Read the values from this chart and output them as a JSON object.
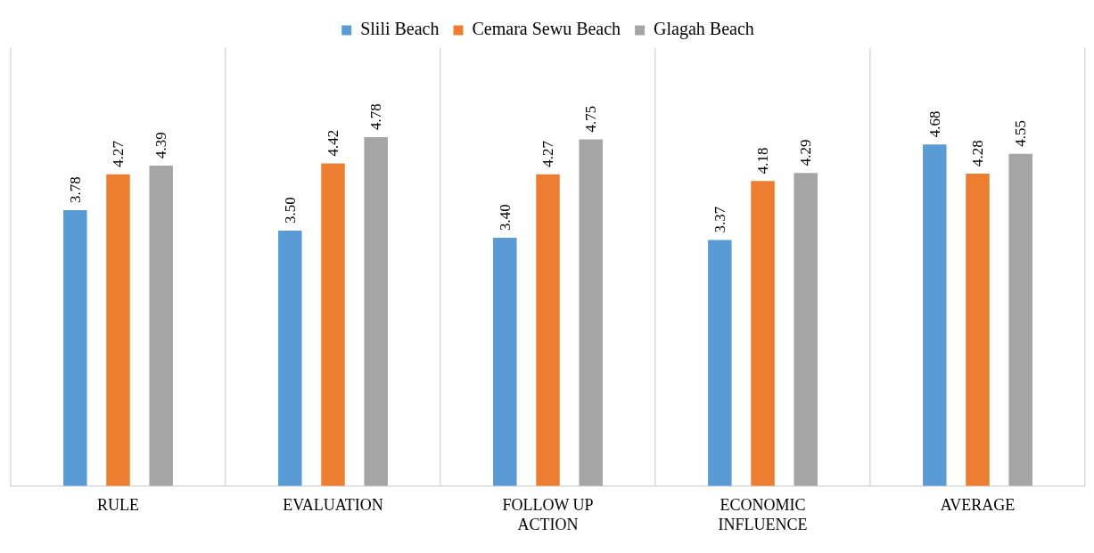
{
  "chart_data": {
    "type": "bar",
    "categories": [
      "RULE",
      "EVALUATION",
      "FOLLOW UP ACTION",
      "ECONOMIC INFLUENCE",
      "AVERAGE"
    ],
    "series": [
      {
        "name": "Slili Beach",
        "color": "#5b9bd5",
        "values": [
          3.78,
          3.5,
          3.4,
          3.37,
          4.68
        ],
        "value_labels": [
          "3.78",
          "3.50",
          "3.40",
          "3.37",
          "4.68"
        ]
      },
      {
        "name": "Cemara Sewu Beach",
        "color": "#ed7d31",
        "values": [
          4.27,
          4.42,
          4.27,
          4.18,
          4.28
        ],
        "value_labels": [
          "4.27",
          "4.42",
          "4.27",
          "4.18",
          "4.28"
        ]
      },
      {
        "name": "Glagah Beach",
        "color": "#a5a5a5",
        "values": [
          4.39,
          4.78,
          4.75,
          4.29,
          4.55
        ],
        "value_labels": [
          "4.39",
          "4.78",
          "4.75",
          "4.29",
          "4.55"
        ]
      }
    ],
    "ylim": [
      0,
      6
    ],
    "tick_labels": "x",
    "grid": "x",
    "legend": "top"
  }
}
